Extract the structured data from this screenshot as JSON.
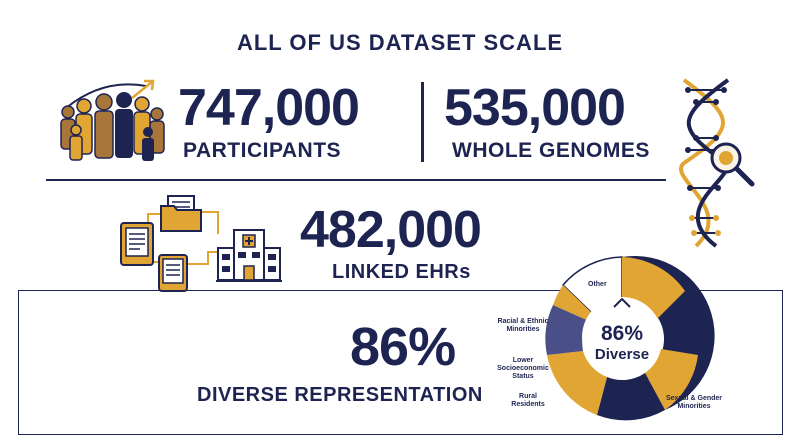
{
  "title": "ALL OF US DATASET SCALE",
  "stats": {
    "participants": {
      "value": "747,000",
      "label": "PARTICIPANTS"
    },
    "genomes": {
      "value": "535,000",
      "label": "WHOLE GENOMES"
    },
    "ehrs": {
      "value": "482,000",
      "label": "LINKED EHRs"
    },
    "diverse": {
      "value": "86%",
      "label": "DIVERSE REPRESENTATION"
    }
  },
  "donut": {
    "center_value": "86%",
    "center_label": "Diverse",
    "slices": [
      {
        "label": "Other",
        "color": "#ffffff"
      },
      {
        "label": "Racial & Ethnic Minorities",
        "color": "#e1a533"
      },
      {
        "label": "Lower Socioeconomic Status",
        "color": "#4a4f88"
      },
      {
        "label": "Rural Residents",
        "color": "#e1a533"
      },
      {
        "label": "Sexual & Gender Minorities",
        "color": "#1e2452"
      }
    ]
  },
  "colors": {
    "navy": "#1e2452",
    "gold": "#e1a533",
    "brown": "#a8763a"
  },
  "icons": [
    "people-group-icon",
    "dna-icon",
    "magnifier-icon",
    "folder-icon",
    "document-icon",
    "tablet-icon",
    "hospital-icon"
  ]
}
